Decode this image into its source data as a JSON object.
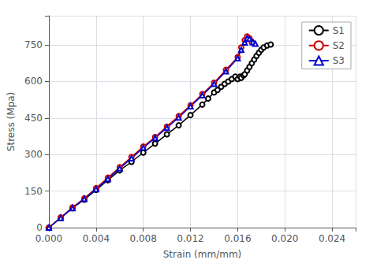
{
  "chart_data": {
    "type": "line",
    "xlabel": "Strain (mm/mm)",
    "ylabel": "Stress (Mpa)",
    "xlim": [
      0.0,
      0.026
    ],
    "ylim": [
      0,
      870
    ],
    "xticks": [
      {
        "value": 0.0,
        "label": "0.000"
      },
      0.004,
      0.008,
      0.012,
      0.016,
      {
        "value": 0.02,
        "label": "0.020"
      },
      0.024
    ],
    "yticks": [
      0,
      150,
      300,
      450,
      600,
      750
    ],
    "grid": true,
    "legend": "upper right",
    "series": [
      {
        "name": "S1",
        "color": "#000000",
        "marker": "circle",
        "x": [
          0.0,
          0.001,
          0.002,
          0.003,
          0.004,
          0.005,
          0.006,
          0.007,
          0.008,
          0.009,
          0.01,
          0.011,
          0.012,
          0.013,
          0.0135,
          0.014,
          0.0143,
          0.0146,
          0.0149,
          0.0152,
          0.0155,
          0.0158,
          0.016,
          0.0162,
          0.0163,
          0.0165,
          0.0166,
          0.0168,
          0.017,
          0.0172,
          0.0174,
          0.0176,
          0.0178,
          0.018,
          0.0182,
          0.0185,
          0.0188
        ],
        "values": [
          0,
          40,
          80,
          115,
          155,
          195,
          235,
          270,
          308,
          345,
          383,
          420,
          462,
          505,
          530,
          555,
          565,
          578,
          590,
          600,
          610,
          620,
          610,
          620,
          615,
          625,
          630,
          645,
          660,
          675,
          690,
          705,
          718,
          730,
          740,
          748,
          752
        ]
      },
      {
        "name": "S2",
        "color": "#cc0000",
        "marker": "circle",
        "x": [
          0.0,
          0.001,
          0.002,
          0.003,
          0.004,
          0.005,
          0.006,
          0.007,
          0.008,
          0.009,
          0.01,
          0.011,
          0.012,
          0.013,
          0.014,
          0.015,
          0.016,
          0.0163,
          0.0166,
          0.0168,
          0.017,
          0.0172
        ],
        "values": [
          0,
          42,
          83,
          120,
          162,
          205,
          248,
          290,
          333,
          372,
          415,
          458,
          502,
          548,
          595,
          648,
          700,
          740,
          770,
          785,
          778,
          760
        ]
      },
      {
        "name": "S3",
        "color": "#0000cc",
        "marker": "triangle",
        "x": [
          0.0,
          0.001,
          0.002,
          0.003,
          0.004,
          0.005,
          0.006,
          0.007,
          0.008,
          0.009,
          0.01,
          0.011,
          0.012,
          0.013,
          0.014,
          0.015,
          0.016,
          0.0163,
          0.0166,
          0.0168,
          0.017,
          0.0173,
          0.0175
        ],
        "values": [
          0,
          40,
          80,
          118,
          158,
          200,
          243,
          285,
          328,
          368,
          410,
          452,
          498,
          543,
          590,
          642,
          695,
          730,
          760,
          778,
          775,
          762,
          755
        ]
      }
    ]
  }
}
